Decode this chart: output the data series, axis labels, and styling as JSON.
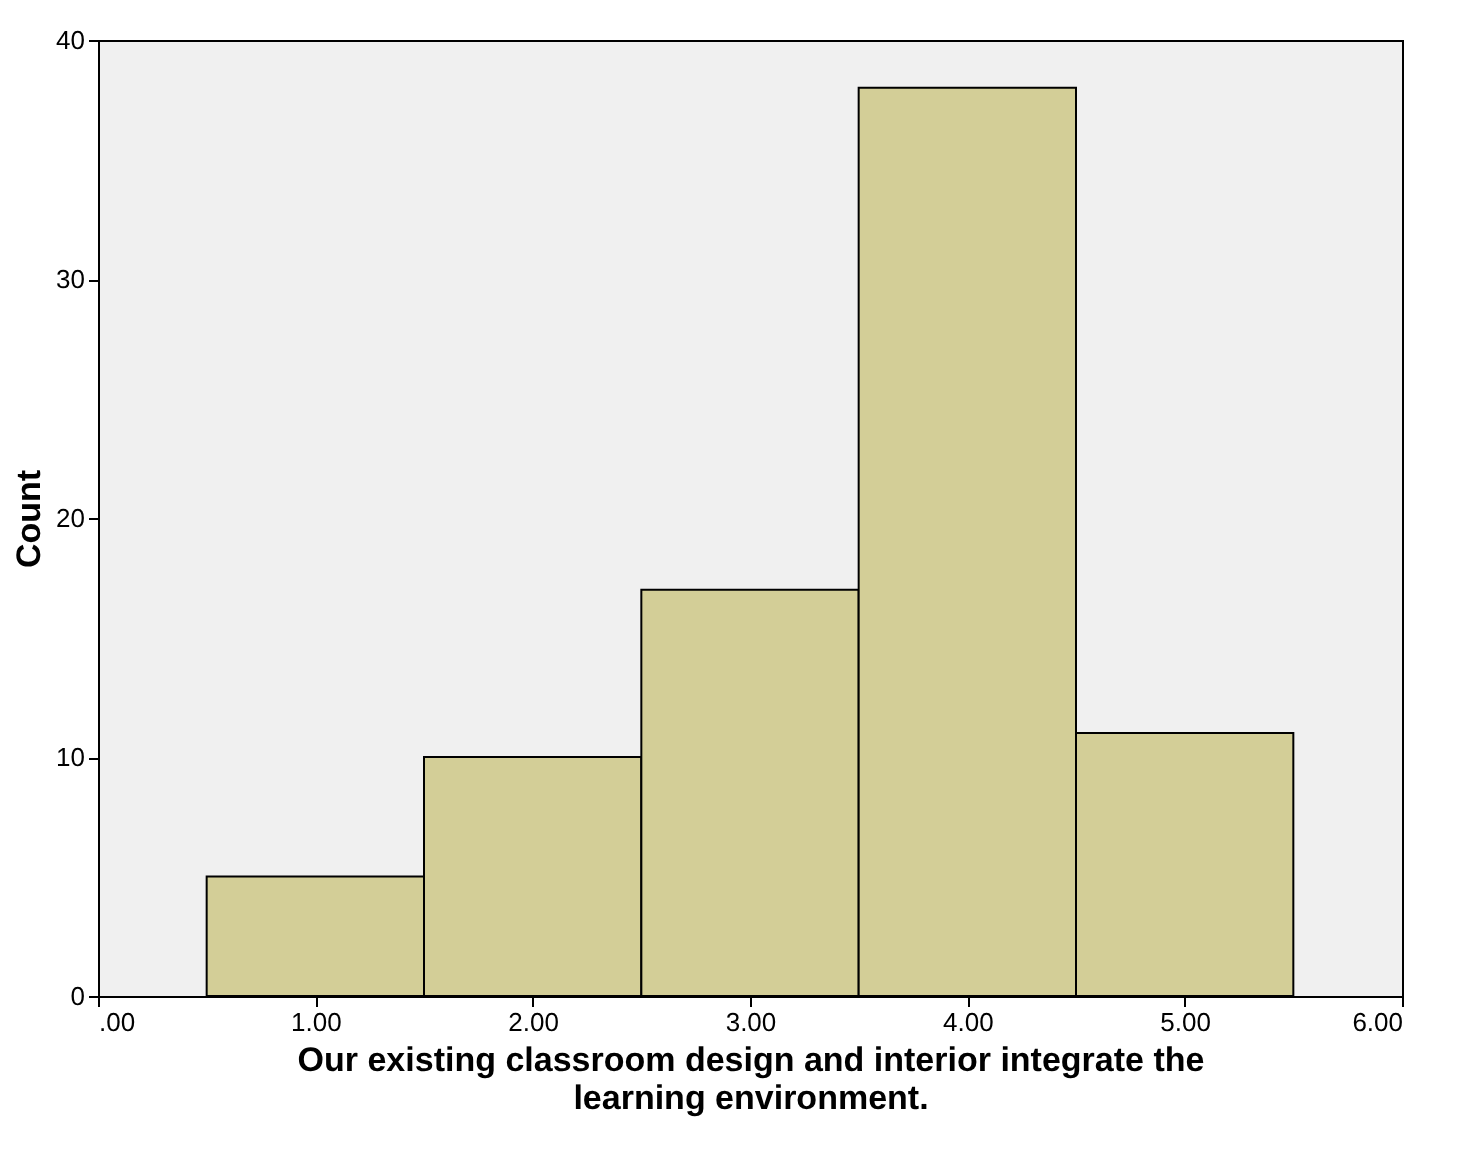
{
  "chart_data": {
    "type": "histogram",
    "xlabel": "Our existing classroom design and interior integrate the learning environment.",
    "ylabel": "Count",
    "bins": [
      0.5,
      1.5,
      2.5,
      3.5,
      4.5,
      5.5
    ],
    "values": [
      5,
      10,
      17,
      38,
      11
    ],
    "color": "#d3ce97",
    "xlim": [
      0,
      6
    ],
    "xticks": [
      {
        "value": 0,
        "label": ".00"
      },
      {
        "value": 1,
        "label": "1.00"
      },
      {
        "value": 2,
        "label": "2.00"
      },
      {
        "value": 3,
        "label": "3.00"
      },
      {
        "value": 4,
        "label": "4.00"
      },
      {
        "value": 5,
        "label": "5.00"
      },
      {
        "value": 6,
        "label": "6.00"
      }
    ],
    "ylim": [
      0,
      40
    ],
    "yticks": [
      0,
      10,
      20,
      30,
      40
    ],
    "grid": false
  }
}
